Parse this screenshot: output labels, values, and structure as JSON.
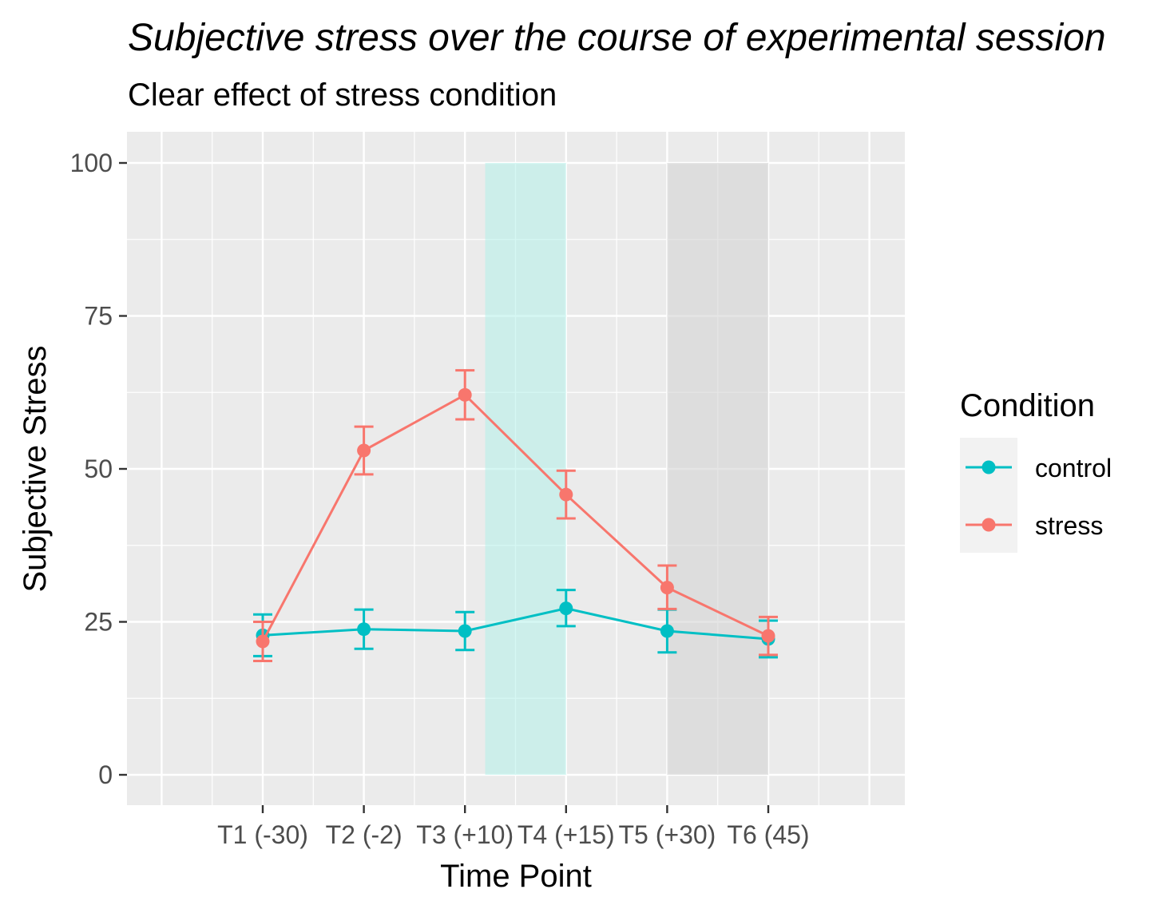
{
  "chart_data": {
    "type": "line",
    "title": "Subjective stress over the course of experimental session",
    "subtitle": "Clear effect of stress condition",
    "xlabel": "Time Point",
    "ylabel": "Subjective Stress",
    "categories": [
      "T1 (-30)",
      "T2 (-2)",
      "T3 (+10)",
      "T4 (+15)",
      "T5 (+30)",
      "T6 (45)"
    ],
    "ylim": [
      0,
      100
    ],
    "yticks": [
      0,
      25,
      50,
      75,
      100
    ],
    "grid": true,
    "legend": {
      "title": "Condition",
      "position": "right"
    },
    "series": [
      {
        "name": "control",
        "color": "#00BFC4",
        "values": [
          22.8,
          23.8,
          23.5,
          27.2,
          23.5,
          22.2
        ],
        "error_low": [
          19.4,
          20.6,
          20.4,
          24.3,
          20.0,
          19.2
        ],
        "error_high": [
          26.2,
          27.0,
          26.6,
          30.2,
          27.0,
          25.2
        ]
      },
      {
        "name": "stress",
        "color": "#F8766D",
        "values": [
          21.8,
          53.0,
          62.1,
          45.8,
          30.6,
          22.7
        ],
        "error_low": [
          18.6,
          49.1,
          58.1,
          41.9,
          27.1,
          19.6
        ],
        "error_high": [
          25.0,
          56.9,
          66.1,
          49.7,
          34.2,
          25.8
        ]
      }
    ],
    "shaded_regions": [
      {
        "from": 2.2,
        "to": 3.0,
        "ymin": 0,
        "ymax": 100,
        "color": "#B2F0EA",
        "opacity": 0.55
      },
      {
        "from": 4.0,
        "to": 5.0,
        "ymin": 0,
        "ymax": 100,
        "color": "#D4D4D4",
        "opacity": 0.6
      }
    ]
  }
}
